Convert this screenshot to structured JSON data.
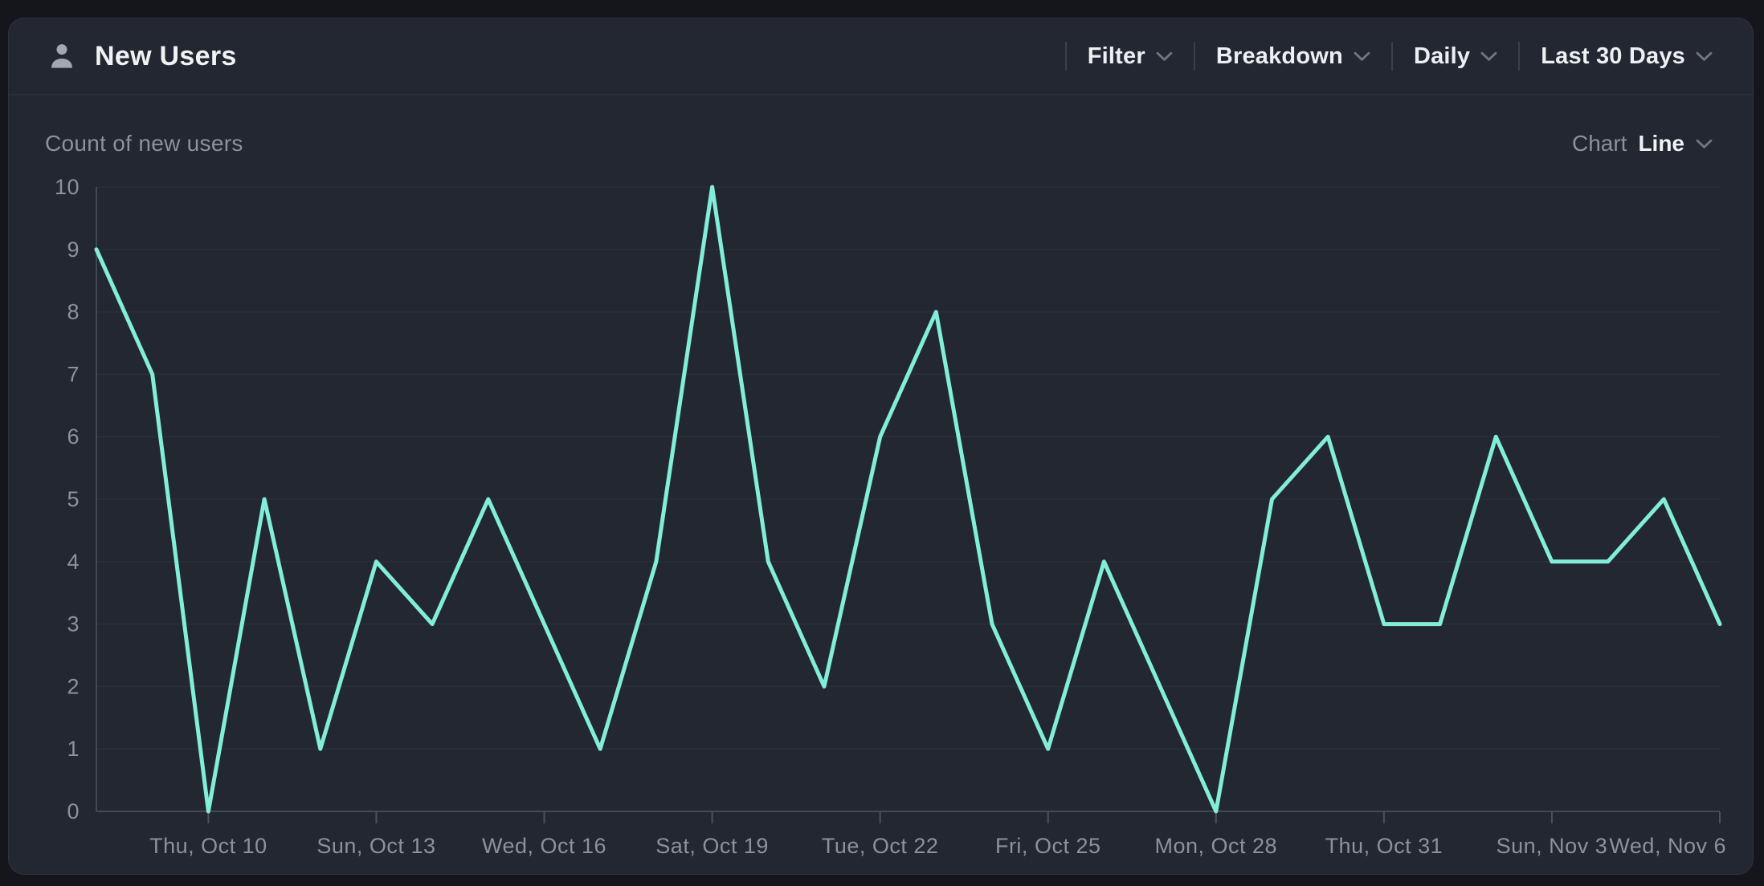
{
  "header": {
    "title": "New Users",
    "icon": "user-icon",
    "controls": [
      {
        "id": "filter",
        "label": "Filter"
      },
      {
        "id": "breakdown",
        "label": "Breakdown"
      },
      {
        "id": "interval",
        "label": "Daily"
      },
      {
        "id": "date-range",
        "label": "Last 30 Days"
      }
    ]
  },
  "subheader": {
    "subtitle": "Count of new users",
    "chart_selector": {
      "label": "Chart",
      "value": "Line"
    }
  },
  "colors": {
    "page_bg": "#15161B",
    "card_bg": "#232731",
    "grid": "#2B2F39",
    "axis": "#424854",
    "line": "#82EDD9",
    "text_primary": "#F1F2F4",
    "text_secondary": "#8D919B"
  },
  "chart_data": {
    "type": "line",
    "title": "Count of new users",
    "x": [
      "Oct 8",
      "Oct 9",
      "Oct 10",
      "Oct 11",
      "Oct 12",
      "Oct 13",
      "Oct 14",
      "Oct 15",
      "Oct 16",
      "Oct 17",
      "Oct 18",
      "Oct 19",
      "Oct 20",
      "Oct 21",
      "Oct 22",
      "Oct 23",
      "Oct 24",
      "Oct 25",
      "Oct 26",
      "Oct 27",
      "Oct 28",
      "Oct 29",
      "Oct 30",
      "Oct 31",
      "Nov 1",
      "Nov 2",
      "Nov 3",
      "Nov 4",
      "Nov 5",
      "Nov 6"
    ],
    "values": [
      9,
      7,
      0,
      5,
      1,
      4,
      3,
      5,
      3,
      1,
      4,
      10,
      4,
      2,
      6,
      8,
      3,
      1,
      4,
      2,
      0,
      5,
      6,
      3,
      3,
      6,
      4,
      4,
      5,
      3
    ],
    "ylim": [
      0,
      10
    ],
    "y_ticks": [
      0,
      1,
      2,
      3,
      4,
      5,
      6,
      7,
      8,
      9,
      10
    ],
    "x_tick_indices": [
      2,
      5,
      8,
      11,
      14,
      17,
      20,
      23,
      26,
      29
    ],
    "x_tick_labels": [
      "Thu, Oct 10",
      "Sun, Oct 13",
      "Wed, Oct 16",
      "Sat, Oct 19",
      "Tue, Oct 22",
      "Fri, Oct 25",
      "Mon, Oct 28",
      "Thu, Oct 31",
      "Sun, Nov 3",
      "Wed, Nov 6"
    ],
    "grid": true,
    "legend_position": "none",
    "line_color": "#82EDD9",
    "xlabel": "",
    "ylabel": ""
  }
}
